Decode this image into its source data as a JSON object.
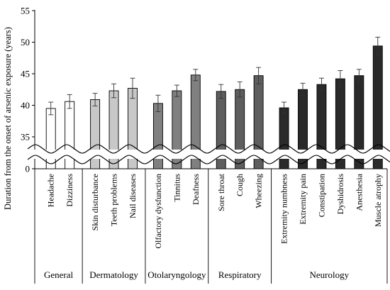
{
  "chart_data": {
    "type": "bar",
    "ylabel": "Duration from the onset of arsenic exposure (years)",
    "y_axis_break": true,
    "ylim": [
      0,
      55
    ],
    "break_range": [
      0,
      35
    ],
    "yticks": [
      0,
      35,
      40,
      45,
      50,
      55
    ],
    "grid": false,
    "error_bars": true,
    "categories": [
      "Headache",
      "Dizziness",
      "Skin disturbance",
      "Teeth problems",
      "Nail diseases",
      "Olfactory dysfunction",
      "Tinnitus",
      "Deafness",
      "Sore throat",
      "Cough",
      "Wheezing",
      "Extremity numbness",
      "Extremity pain",
      "Constipation",
      "Dyshidrosis",
      "Anesthesia",
      "Muscle atrophy"
    ],
    "values": [
      39.5,
      40.6,
      40.9,
      42.3,
      42.7,
      40.3,
      42.3,
      44.8,
      42.2,
      42.5,
      44.7,
      39.6,
      42.5,
      43.3,
      44.2,
      44.7,
      49.4
    ],
    "errors": [
      1.0,
      1.1,
      1.0,
      1.1,
      1.6,
      1.3,
      0.9,
      0.9,
      1.1,
      1.2,
      1.3,
      0.9,
      1.0,
      1.0,
      1.3,
      1.0,
      1.4
    ],
    "groups": [
      {
        "name": "General",
        "color": "#ffffff",
        "members": [
          0,
          1
        ]
      },
      {
        "name": "Dermatology",
        "color": "#c8c8c8",
        "members": [
          2,
          3,
          4
        ]
      },
      {
        "name": "Otolaryngology",
        "color": "#808080",
        "members": [
          5,
          6,
          7
        ]
      },
      {
        "name": "Respiratory",
        "color": "#5e5e5e",
        "members": [
          8,
          9,
          10
        ]
      },
      {
        "name": "Neurology",
        "color": "#2a2a2a",
        "members": [
          11,
          12,
          13,
          14,
          15,
          16
        ]
      }
    ]
  }
}
